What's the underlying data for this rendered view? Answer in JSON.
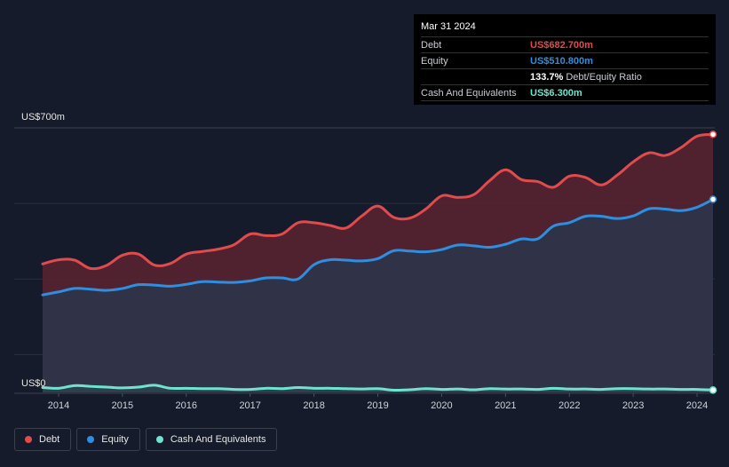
{
  "chart_data": {
    "type": "area",
    "title": "",
    "xlabel": "",
    "ylabel": "",
    "y_top_label": "US$700m",
    "y_bottom_label": "US$0",
    "ylim": [
      0,
      700
    ],
    "xlim": [
      2013.75,
      2024.25
    ],
    "x_ticks": [
      "2014",
      "2015",
      "2016",
      "2017",
      "2018",
      "2019",
      "2020",
      "2021",
      "2022",
      "2023",
      "2024"
    ],
    "series": [
      {
        "name": "Debt",
        "color": "#e24b4b",
        "points": [
          [
            2013.75,
            340
          ],
          [
            2014.0,
            351
          ],
          [
            2014.25,
            350
          ],
          [
            2014.5,
            328
          ],
          [
            2014.75,
            336
          ],
          [
            2015.0,
            363
          ],
          [
            2015.25,
            366
          ],
          [
            2015.5,
            337
          ],
          [
            2015.75,
            341
          ],
          [
            2016.0,
            366
          ],
          [
            2016.25,
            373
          ],
          [
            2016.5,
            379
          ],
          [
            2016.75,
            391
          ],
          [
            2017.0,
            419
          ],
          [
            2017.25,
            415
          ],
          [
            2017.5,
            419
          ],
          [
            2017.75,
            449
          ],
          [
            2018.0,
            449
          ],
          [
            2018.25,
            442
          ],
          [
            2018.5,
            435
          ],
          [
            2018.75,
            467
          ],
          [
            2019.0,
            493
          ],
          [
            2019.25,
            463
          ],
          [
            2019.5,
            461
          ],
          [
            2019.75,
            485
          ],
          [
            2020.0,
            520
          ],
          [
            2020.25,
            516
          ],
          [
            2020.5,
            523
          ],
          [
            2020.75,
            560
          ],
          [
            2021.0,
            589
          ],
          [
            2021.25,
            563
          ],
          [
            2021.5,
            558
          ],
          [
            2021.75,
            543
          ],
          [
            2022.0,
            572
          ],
          [
            2022.25,
            569
          ],
          [
            2022.5,
            549
          ],
          [
            2022.75,
            575
          ],
          [
            2023.0,
            610
          ],
          [
            2023.25,
            634
          ],
          [
            2023.5,
            627
          ],
          [
            2023.75,
            648
          ],
          [
            2024.0,
            678
          ],
          [
            2024.25,
            682.7
          ]
        ]
      },
      {
        "name": "Equity",
        "color": "#2f8ee0",
        "points": [
          [
            2013.75,
            258
          ],
          [
            2014.0,
            266
          ],
          [
            2014.25,
            275
          ],
          [
            2014.5,
            273
          ],
          [
            2014.75,
            270
          ],
          [
            2015.0,
            275
          ],
          [
            2015.25,
            285
          ],
          [
            2015.5,
            284
          ],
          [
            2015.75,
            281
          ],
          [
            2016.0,
            286
          ],
          [
            2016.25,
            293
          ],
          [
            2016.5,
            292
          ],
          [
            2016.75,
            291
          ],
          [
            2017.0,
            295
          ],
          [
            2017.25,
            303
          ],
          [
            2017.5,
            303
          ],
          [
            2017.75,
            300
          ],
          [
            2018.0,
            338
          ],
          [
            2018.25,
            351
          ],
          [
            2018.5,
            350
          ],
          [
            2018.75,
            348
          ],
          [
            2019.0,
            354
          ],
          [
            2019.25,
            375
          ],
          [
            2019.5,
            374
          ],
          [
            2019.75,
            372
          ],
          [
            2020.0,
            378
          ],
          [
            2020.25,
            390
          ],
          [
            2020.5,
            388
          ],
          [
            2020.75,
            384
          ],
          [
            2021.0,
            392
          ],
          [
            2021.25,
            406
          ],
          [
            2021.5,
            406
          ],
          [
            2021.75,
            440
          ],
          [
            2022.0,
            449
          ],
          [
            2022.25,
            466
          ],
          [
            2022.5,
            466
          ],
          [
            2022.75,
            460
          ],
          [
            2023.0,
            467
          ],
          [
            2023.25,
            486
          ],
          [
            2023.5,
            485
          ],
          [
            2023.75,
            481
          ],
          [
            2024.0,
            490
          ],
          [
            2024.25,
            510.8
          ]
        ]
      },
      {
        "name": "Cash And Equivalents",
        "color": "#6fe3cf",
        "points": [
          [
            2013.75,
            13
          ],
          [
            2014.0,
            11
          ],
          [
            2014.25,
            18
          ],
          [
            2014.5,
            16
          ],
          [
            2014.75,
            14
          ],
          [
            2015.0,
            12
          ],
          [
            2015.25,
            14
          ],
          [
            2015.5,
            19
          ],
          [
            2015.75,
            11
          ],
          [
            2016.0,
            11
          ],
          [
            2016.25,
            10
          ],
          [
            2016.5,
            10
          ],
          [
            2016.75,
            8
          ],
          [
            2017.0,
            8
          ],
          [
            2017.25,
            11
          ],
          [
            2017.5,
            10
          ],
          [
            2017.75,
            13
          ],
          [
            2018.0,
            11
          ],
          [
            2018.25,
            11
          ],
          [
            2018.5,
            10
          ],
          [
            2018.75,
            9
          ],
          [
            2019.0,
            10
          ],
          [
            2019.25,
            6
          ],
          [
            2019.5,
            7
          ],
          [
            2019.75,
            10
          ],
          [
            2020.0,
            8
          ],
          [
            2020.25,
            9
          ],
          [
            2020.5,
            7
          ],
          [
            2020.75,
            10
          ],
          [
            2021.0,
            9
          ],
          [
            2021.25,
            9
          ],
          [
            2021.5,
            8
          ],
          [
            2021.75,
            11
          ],
          [
            2022.0,
            9
          ],
          [
            2022.25,
            9
          ],
          [
            2022.5,
            8
          ],
          [
            2022.75,
            10
          ],
          [
            2023.0,
            10
          ],
          [
            2023.25,
            9
          ],
          [
            2023.5,
            9
          ],
          [
            2023.75,
            8
          ],
          [
            2024.0,
            8
          ],
          [
            2024.25,
            6.3
          ]
        ]
      }
    ]
  },
  "tooltip": {
    "date": "Mar 31 2024",
    "rows": [
      {
        "label": "Debt",
        "value": "US$682.700m",
        "color": "#e24b4b"
      },
      {
        "label": "Equity",
        "value": "US$510.800m",
        "color": "#2f8ee0"
      },
      {
        "label": "",
        "value": "133.7%",
        "suffix": "Debt/Equity Ratio",
        "color": "#ffffff"
      },
      {
        "label": "Cash And Equivalents",
        "value": "US$6.300m",
        "color": "#6fe3cf"
      }
    ]
  },
  "legend": [
    {
      "label": "Debt",
      "color": "#e24b4b"
    },
    {
      "label": "Equity",
      "color": "#2f8ee0"
    },
    {
      "label": "Cash And Equivalents",
      "color": "#6fe3cf"
    }
  ]
}
